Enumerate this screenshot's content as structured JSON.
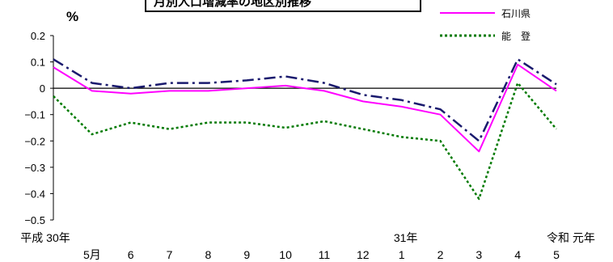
{
  "chart_data": {
    "type": "line",
    "title": "",
    "y_unit": "%",
    "x": [
      "30年4月",
      "5月",
      "6",
      "7",
      "8",
      "9",
      "10",
      "11",
      "12",
      "31年1",
      "2",
      "3",
      "4",
      "元年5"
    ],
    "x_tick_labels": [
      "5月",
      "6",
      "7",
      "8",
      "9",
      "10",
      "11",
      "12",
      "1",
      "2",
      "3",
      "4",
      "5"
    ],
    "era_labels": [
      "平成 30年",
      "31年",
      "令和 元年"
    ],
    "ylim": [
      -0.5,
      0.2
    ],
    "yticks": [
      "0.2",
      "0.1",
      "0",
      "−0.1",
      "−0.2",
      "−0.3",
      "−0.4",
      "−0.5"
    ],
    "grid": false,
    "legend_position": "top-right",
    "series": [
      {
        "name": "",
        "style": "dash-dot",
        "color": "#1a1a6e",
        "values": [
          0.11,
          0.02,
          0.0,
          0.02,
          0.02,
          0.03,
          0.045,
          0.02,
          -0.025,
          -0.045,
          -0.08,
          -0.2,
          0.11,
          0.015
        ]
      },
      {
        "name": "石川県",
        "style": "solid",
        "color": "#ff00ff",
        "values": [
          0.08,
          -0.01,
          -0.02,
          -0.01,
          -0.01,
          0.0,
          0.01,
          -0.01,
          -0.05,
          -0.07,
          -0.1,
          -0.24,
          0.09,
          -0.01
        ]
      },
      {
        "name": "能　登",
        "style": "dotted",
        "color": "#007a00",
        "values": [
          -0.03,
          -0.175,
          -0.13,
          -0.155,
          -0.13,
          -0.13,
          -0.15,
          -0.125,
          -0.155,
          -0.185,
          -0.2,
          -0.42,
          0.02,
          -0.155
        ]
      }
    ],
    "title_box_text": "月別人口増減率の地区別推移"
  }
}
